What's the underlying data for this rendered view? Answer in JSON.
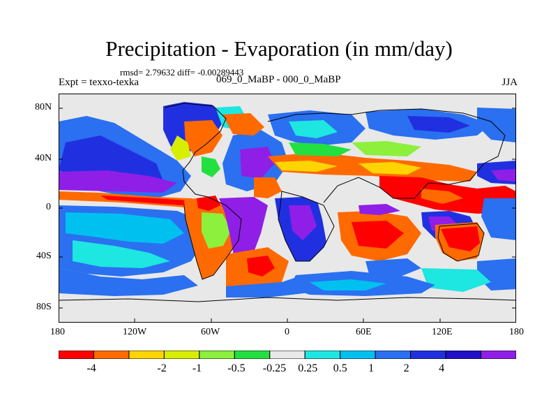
{
  "title": "Precipitation - Evaporation (in mm/day)",
  "stats": "rmsd= 2.79632  diff= -0.00289443",
  "left_label": "Expt = texxo-texka",
  "center_label": "069_0_MaBP - 000_0_MaBP",
  "right_label": "JJA",
  "lat_labels": [
    "80N",
    "40N",
    "0",
    "40S",
    "80S"
  ],
  "lon_labels": [
    "180",
    "120W",
    "60W",
    "0",
    "60E",
    "120E",
    "180"
  ],
  "colorbar": {
    "colors": [
      "#ff0000",
      "#ff6a00",
      "#ffd400",
      "#d8ee00",
      "#8cf03c",
      "#22e040",
      "#e8e8e8",
      "#1ee6e0",
      "#00c0f0",
      "#2a70f0",
      "#2030e0",
      "#2010c8",
      "#8f1fe6"
    ],
    "labels": [
      "-4",
      "-2",
      "-1",
      "-0.5",
      "-0.25",
      "0.25",
      "0.5",
      "1",
      "2",
      "4"
    ]
  }
}
